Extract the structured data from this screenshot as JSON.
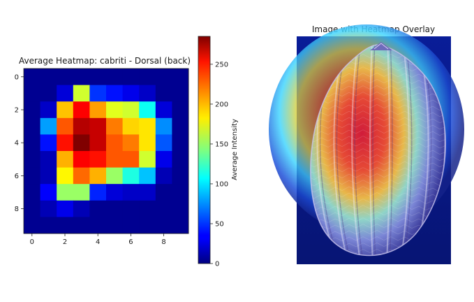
{
  "chart_data": [
    {
      "type": "heatmap",
      "title": "Average Heatmap: cabriti - Dorsal (back)",
      "xlabel": "",
      "ylabel": "",
      "x_ticks": [
        0,
        2,
        4,
        6,
        8
      ],
      "y_ticks": [
        0,
        2,
        4,
        6,
        8
      ],
      "rows": 10,
      "cols": 10,
      "values": [
        [
          5,
          5,
          5,
          5,
          5,
          5,
          5,
          5,
          5,
          5
        ],
        [
          5,
          5,
          25,
          165,
          50,
          40,
          30,
          20,
          5,
          5
        ],
        [
          5,
          20,
          195,
          250,
          205,
          170,
          165,
          110,
          25,
          5
        ],
        [
          5,
          80,
          225,
          270,
          265,
          215,
          190,
          185,
          75,
          5
        ],
        [
          5,
          40,
          245,
          285,
          265,
          225,
          215,
          185,
          60,
          5
        ],
        [
          5,
          15,
          200,
          250,
          245,
          225,
          225,
          165,
          30,
          5
        ],
        [
          5,
          15,
          180,
          220,
          200,
          150,
          115,
          90,
          15,
          5
        ],
        [
          5,
          35,
          150,
          150,
          45,
          25,
          20,
          20,
          5,
          5
        ],
        [
          5,
          15,
          30,
          15,
          5,
          5,
          5,
          5,
          5,
          5
        ],
        [
          5,
          5,
          5,
          5,
          5,
          5,
          5,
          5,
          5,
          5
        ]
      ],
      "colorbar": {
        "label": "Average Intensity",
        "range": [
          0,
          285
        ],
        "ticks": [
          0,
          50,
          100,
          150,
          200,
          250
        ],
        "colormap": "jet"
      }
    },
    {
      "type": "image",
      "title": "Image with Heatmap Overlay",
      "subject": "shell-with-heatmap-overlay"
    }
  ]
}
